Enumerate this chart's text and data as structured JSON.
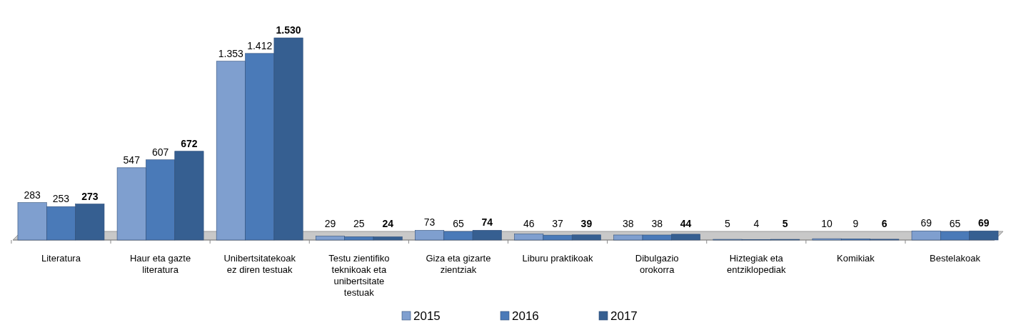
{
  "chart_data": {
    "type": "bar",
    "categories": [
      "Literatura",
      "Haur eta gazte literatura",
      "Unibertsitatekoak ez diren testuak",
      "Testu zientifiko teknikoak eta unibertsitate testuak",
      "Giza eta gizarte zientziak",
      "Liburu praktikoak",
      "Dibulgazio orokorra",
      "Hiztegiak eta entziklopediak",
      "Komikiak",
      "Bestelakoak"
    ],
    "series": [
      {
        "name": "2015",
        "color": "#7f9fcf",
        "values": [
          283,
          547,
          1353,
          29,
          73,
          46,
          38,
          5,
          10,
          69
        ],
        "value_labels": [
          "283",
          "547",
          "1.353",
          "29",
          "73",
          "46",
          "38",
          "5",
          "10",
          "69"
        ]
      },
      {
        "name": "2016",
        "color": "#4a7ab8",
        "values": [
          253,
          607,
          1412,
          25,
          65,
          37,
          38,
          4,
          9,
          65
        ],
        "value_labels": [
          "253",
          "607",
          "1.412",
          "25",
          "65",
          "37",
          "38",
          "4",
          "9",
          "65"
        ]
      },
      {
        "name": "2017",
        "color": "#365f91",
        "values": [
          273,
          672,
          1530,
          24,
          74,
          39,
          44,
          5,
          6,
          69
        ],
        "value_labels": [
          "273",
          "672",
          "1.530",
          "24",
          "74",
          "39",
          "44",
          "5",
          "6",
          "69"
        ]
      }
    ],
    "legend": "bottom"
  }
}
